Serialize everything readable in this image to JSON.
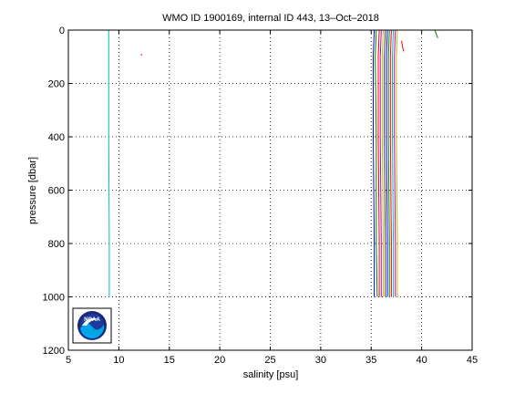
{
  "chart_data": {
    "type": "line",
    "title": "WMO ID 1900169, internal ID 443, 13–Oct–2018",
    "xlabel": "salinity [psu]",
    "ylabel": "pressure [dbar]",
    "xlim": [
      5,
      45
    ],
    "ylim": [
      0,
      1200
    ],
    "y_reversed": true,
    "grid": true,
    "xticks": [
      5,
      10,
      15,
      20,
      25,
      30,
      35,
      40,
      45
    ],
    "yticks": [
      0,
      200,
      400,
      600,
      800,
      1000,
      1200
    ],
    "xtick_labels": [
      "5",
      "10",
      "15",
      "20",
      "25",
      "30",
      "35",
      "40",
      "45"
    ],
    "ytick_labels": [
      "0",
      "200",
      "400",
      "600",
      "800",
      "1000",
      "1200"
    ],
    "series": [
      {
        "color": "#00bfbf",
        "x": [
          9.0,
          9.0,
          9.0,
          9.05,
          9.05
        ],
        "y": [
          0,
          100,
          400,
          800,
          1000
        ]
      },
      {
        "color": "#0000ff",
        "x": [
          35.3,
          35.2,
          35.2,
          35.3,
          35.3
        ],
        "y": [
          0,
          100,
          400,
          800,
          1000
        ]
      },
      {
        "color": "#008000",
        "x": [
          35.5,
          35.4,
          35.5,
          35.5,
          35.6
        ],
        "y": [
          0,
          100,
          400,
          800,
          1000
        ]
      },
      {
        "color": "#ff0000",
        "x": [
          35.8,
          35.7,
          35.7,
          35.8,
          35.8
        ],
        "y": [
          0,
          100,
          400,
          800,
          1000
        ]
      },
      {
        "color": "#bf00bf",
        "x": [
          36.0,
          35.9,
          35.9,
          36.0,
          36.0
        ],
        "y": [
          0,
          100,
          400,
          800,
          1000
        ]
      },
      {
        "color": "#bfbf00",
        "x": [
          36.2,
          36.1,
          36.1,
          36.2,
          36.2
        ],
        "y": [
          0,
          100,
          400,
          800,
          1000
        ]
      },
      {
        "color": "#404040",
        "x": [
          36.4,
          36.3,
          36.3,
          36.4,
          36.4
        ],
        "y": [
          0,
          100,
          400,
          800,
          1000
        ]
      },
      {
        "color": "#0000ff",
        "x": [
          36.6,
          36.5,
          36.5,
          36.6,
          36.6
        ],
        "y": [
          0,
          100,
          400,
          800,
          1000
        ]
      },
      {
        "color": "#008000",
        "x": [
          36.8,
          36.7,
          36.7,
          36.8,
          36.8
        ],
        "y": [
          0,
          100,
          400,
          800,
          1000
        ]
      },
      {
        "color": "#ff0000",
        "x": [
          37.0,
          36.9,
          36.9,
          37.0,
          37.0
        ],
        "y": [
          0,
          100,
          400,
          800,
          1000
        ]
      },
      {
        "color": "#00bfbf",
        "x": [
          37.2,
          37.1,
          37.1,
          37.2,
          37.2
        ],
        "y": [
          0,
          100,
          400,
          800,
          1000
        ]
      },
      {
        "color": "#bf00bf",
        "x": [
          37.4,
          37.3,
          37.3,
          37.4,
          37.4
        ],
        "y": [
          0,
          100,
          400,
          800,
          1000
        ]
      },
      {
        "color": "#bfbf00",
        "x": [
          37.6,
          37.5,
          37.5,
          37.6,
          37.6
        ],
        "y": [
          0,
          100,
          400,
          800,
          1000
        ]
      },
      {
        "color": "#ff0000",
        "x": [
          38.0,
          38.2
        ],
        "y": [
          40,
          80
        ]
      },
      {
        "color": "#008000",
        "x": [
          41.3,
          41.6
        ],
        "y": [
          0,
          30
        ]
      },
      {
        "color": "#ff0000",
        "x": [
          12.2,
          12.3
        ],
        "y": [
          90,
          95
        ]
      }
    ]
  },
  "logo": {
    "text": "NOAA",
    "colors": {
      "ring": "#1a2a7a",
      "sky": "#1a3a9c",
      "water": "#00a6e8",
      "bird": "#ffffff"
    }
  }
}
